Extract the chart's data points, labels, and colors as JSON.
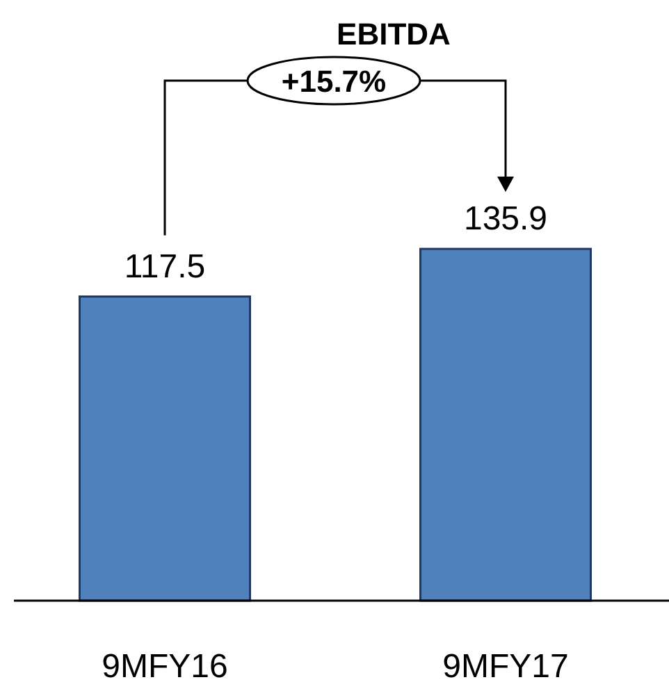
{
  "chart_data": {
    "type": "bar",
    "title": "EBITDA",
    "categories": [
      "9MFY16",
      "9MFY17"
    ],
    "values": [
      117.5,
      135.9
    ],
    "color": "#4f81bd",
    "data_labels": true,
    "annotations": [
      "+15.7%"
    ]
  }
}
